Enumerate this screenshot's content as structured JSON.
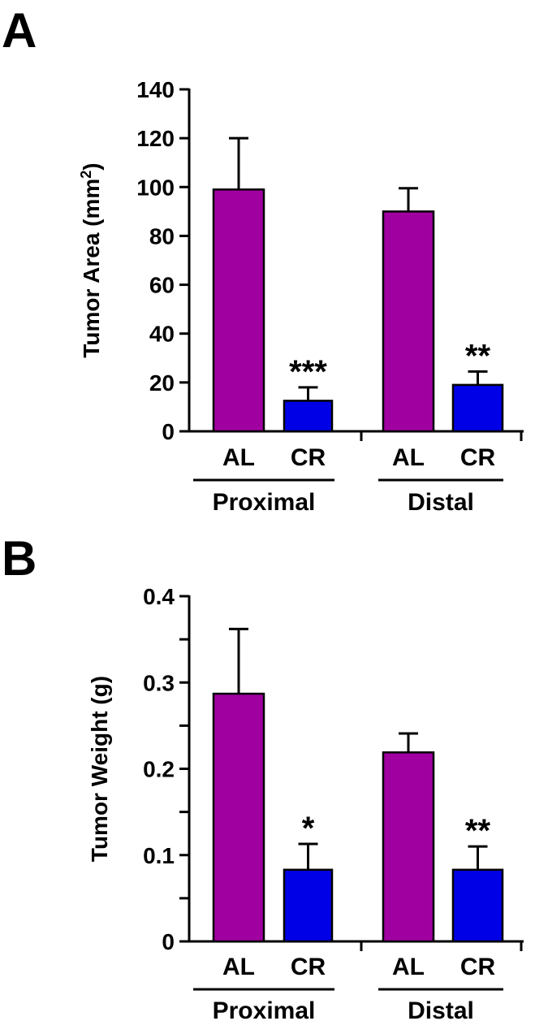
{
  "colors": {
    "AL": "#a100a1",
    "CR": "#0000e6",
    "stroke": "#000000"
  },
  "chart_data": [
    {
      "type": "bar",
      "panel": "A",
      "ylabel": "Tumor Area (mm²)",
      "ylabel_main": "Tumor Area (mm",
      "ylabel_sup": "2",
      "ylabel_end": ")",
      "ylim": [
        0,
        140
      ],
      "yticks": [
        0,
        20,
        40,
        60,
        80,
        100,
        120,
        140
      ],
      "ytick_labels": [
        "0",
        "20",
        "40",
        "60",
        "80",
        "100",
        "120",
        "140"
      ],
      "groups": [
        {
          "name": "Proximal",
          "bars": [
            {
              "category": "AL",
              "value": 99,
              "error": 21,
              "sig": ""
            },
            {
              "category": "CR",
              "value": 12.5,
              "error": 5.5,
              "sig": "***"
            }
          ]
        },
        {
          "name": "Distal",
          "bars": [
            {
              "category": "AL",
              "value": 90,
              "error": 9.5,
              "sig": ""
            },
            {
              "category": "CR",
              "value": 19,
              "error": 5.5,
              "sig": "**"
            }
          ]
        }
      ]
    },
    {
      "type": "bar",
      "panel": "B",
      "ylabel": "Tumor Weight (g)",
      "ylabel_main": "Tumor Weight (g)",
      "ylabel_sup": "",
      "ylabel_end": "",
      "ylim": [
        0,
        0.4
      ],
      "yticks": [
        0,
        0.05,
        0.1,
        0.15,
        0.2,
        0.25,
        0.3,
        0.35,
        0.4
      ],
      "ytick_labels": [
        "0",
        "",
        "0.1",
        "",
        "0.2",
        "",
        "0.3",
        "",
        "0.4"
      ],
      "groups": [
        {
          "name": "Proximal",
          "bars": [
            {
              "category": "AL",
              "value": 0.287,
              "error": 0.075,
              "sig": ""
            },
            {
              "category": "CR",
              "value": 0.083,
              "error": 0.03,
              "sig": "*"
            }
          ]
        },
        {
          "name": "Distal",
          "bars": [
            {
              "category": "AL",
              "value": 0.219,
              "error": 0.022,
              "sig": ""
            },
            {
              "category": "CR",
              "value": 0.083,
              "error": 0.027,
              "sig": "**"
            }
          ]
        }
      ]
    }
  ]
}
